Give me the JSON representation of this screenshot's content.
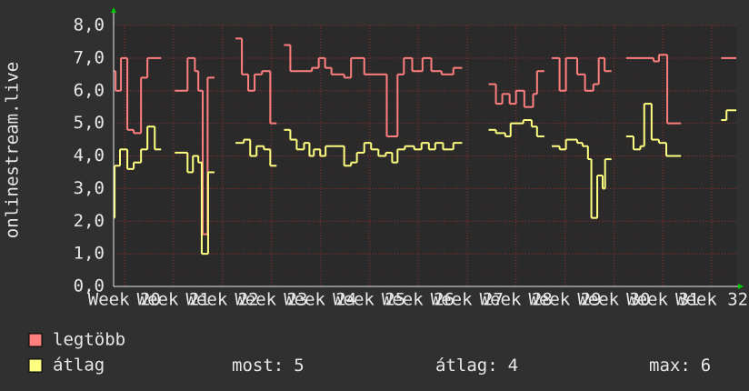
{
  "chart_data": {
    "type": "line",
    "step": true,
    "y_label": "onlinestream.live",
    "xlim": [
      19.78,
      32.5
    ],
    "ylim": [
      0,
      8
    ],
    "grid": true,
    "xticks": [
      {
        "value": 20,
        "label": "Week 20"
      },
      {
        "value": 21,
        "label": "Week 21"
      },
      {
        "value": 22,
        "label": "Week 22"
      },
      {
        "value": 23,
        "label": "Week 23"
      },
      {
        "value": 24,
        "label": "Week 24"
      },
      {
        "value": 25,
        "label": "Week 25"
      },
      {
        "value": 26,
        "label": "Week 26"
      },
      {
        "value": 27,
        "label": "Week 27"
      },
      {
        "value": 28,
        "label": "Week 28"
      },
      {
        "value": 29,
        "label": "Week 29"
      },
      {
        "value": 30,
        "label": "Week 30"
      },
      {
        "value": 31,
        "label": "Week 31"
      },
      {
        "value": 32,
        "label": "Week 32"
      }
    ],
    "yticks": [
      {
        "value": 0,
        "label": "0,0"
      },
      {
        "value": 1,
        "label": "1,0"
      },
      {
        "value": 2,
        "label": "2,0"
      },
      {
        "value": 3,
        "label": "3,0"
      },
      {
        "value": 4,
        "label": "4,0"
      },
      {
        "value": 5,
        "label": "5,0"
      },
      {
        "value": 6,
        "label": "6,0"
      },
      {
        "value": 7,
        "label": "7,0"
      },
      {
        "value": 8,
        "label": "8,0"
      }
    ],
    "series": [
      {
        "name": "legtöbb",
        "color": "#ff7f7f",
        "x": [
          19.78,
          19.82,
          19.93,
          20.06,
          20.19,
          20.34,
          20.47,
          20.75,
          21.03,
          21.29,
          21.44,
          21.51,
          21.6,
          21.7,
          21.84,
          22.27,
          22.4,
          22.53,
          22.66,
          22.81,
          22.98,
          23.11,
          23.26,
          23.39,
          23.59,
          23.83,
          23.97,
          24.1,
          24.23,
          24.49,
          24.63,
          24.9,
          25.08,
          25.36,
          25.58,
          25.71,
          25.88,
          26.09,
          26.27,
          26.48,
          26.72,
          26.9,
          27.44,
          27.59,
          27.72,
          27.87,
          28.0,
          28.17,
          28.35,
          28.43,
          28.58,
          28.73,
          28.89,
          29.02,
          29.25,
          29.41,
          29.58,
          29.69,
          29.81,
          29.95,
          30.25,
          30.81,
          30.92,
          31.09,
          31.37,
          32.19
        ],
        "values": [
          6.6,
          6.0,
          7.0,
          4.8,
          4.7,
          6.4,
          7.0,
          null,
          6.0,
          7.0,
          6.6,
          6.0,
          1.6,
          6.4,
          null,
          7.6,
          6.5,
          6.0,
          6.5,
          6.6,
          5.0,
          null,
          7.4,
          6.6,
          6.6,
          6.7,
          7.0,
          6.7,
          6.5,
          6.4,
          7.0,
          6.5,
          6.5,
          4.6,
          6.5,
          7.0,
          6.6,
          7.0,
          6.6,
          6.5,
          6.7,
          null,
          6.2,
          5.6,
          5.9,
          5.6,
          6.0,
          5.5,
          5.9,
          6.6,
          null,
          7.0,
          6.0,
          7.0,
          6.5,
          6.0,
          6.2,
          7.0,
          6.6,
          null,
          7.0,
          6.9,
          7.1,
          5.0,
          null,
          7.0
        ]
      },
      {
        "name": "átlag",
        "color": "#ffff80",
        "x": [
          19.78,
          19.8,
          19.91,
          20.06,
          20.19,
          20.34,
          20.47,
          20.62,
          20.75,
          21.03,
          21.29,
          21.4,
          21.51,
          21.58,
          21.71,
          21.84,
          22.27,
          22.44,
          22.57,
          22.7,
          22.85,
          22.98,
          23.11,
          23.26,
          23.39,
          23.52,
          23.67,
          23.78,
          23.87,
          24.0,
          24.11,
          24.26,
          24.49,
          24.63,
          24.75,
          24.9,
          25.04,
          25.19,
          25.34,
          25.47,
          25.58,
          25.73,
          25.92,
          26.07,
          26.22,
          26.35,
          26.51,
          26.72,
          26.9,
          27.44,
          27.59,
          27.78,
          27.89,
          28.15,
          28.32,
          28.43,
          28.58,
          28.73,
          28.89,
          29.02,
          29.25,
          29.36,
          29.47,
          29.54,
          29.66,
          29.77,
          29.82,
          29.95,
          30.25,
          30.4,
          30.54,
          30.62,
          30.77,
          30.92,
          31.07,
          31.37,
          32.19,
          32.3
        ],
        "values": [
          2.1,
          3.7,
          4.2,
          3.6,
          3.8,
          4.2,
          4.9,
          4.2,
          null,
          4.1,
          3.5,
          4.0,
          3.8,
          1.0,
          3.5,
          null,
          4.4,
          4.5,
          4.0,
          4.3,
          4.2,
          3.7,
          null,
          4.8,
          4.5,
          4.2,
          4.4,
          4.0,
          4.2,
          4.0,
          4.3,
          4.3,
          3.7,
          3.8,
          4.1,
          4.4,
          4.2,
          4.0,
          4.1,
          3.8,
          4.2,
          4.3,
          4.2,
          4.4,
          4.2,
          4.4,
          4.2,
          4.4,
          null,
          4.8,
          4.7,
          4.6,
          5.0,
          5.1,
          4.9,
          4.6,
          null,
          4.3,
          4.2,
          4.5,
          4.4,
          4.3,
          3.9,
          2.1,
          3.4,
          3.0,
          3.9,
          null,
          4.6,
          4.2,
          4.3,
          5.6,
          4.5,
          4.4,
          4.0,
          null,
          5.1,
          5.4
        ]
      }
    ],
    "stats": [
      {
        "label": "most:",
        "value": 5
      },
      {
        "label": "átlag:",
        "value": 4
      },
      {
        "label": "max:",
        "value": 6
      }
    ]
  }
}
